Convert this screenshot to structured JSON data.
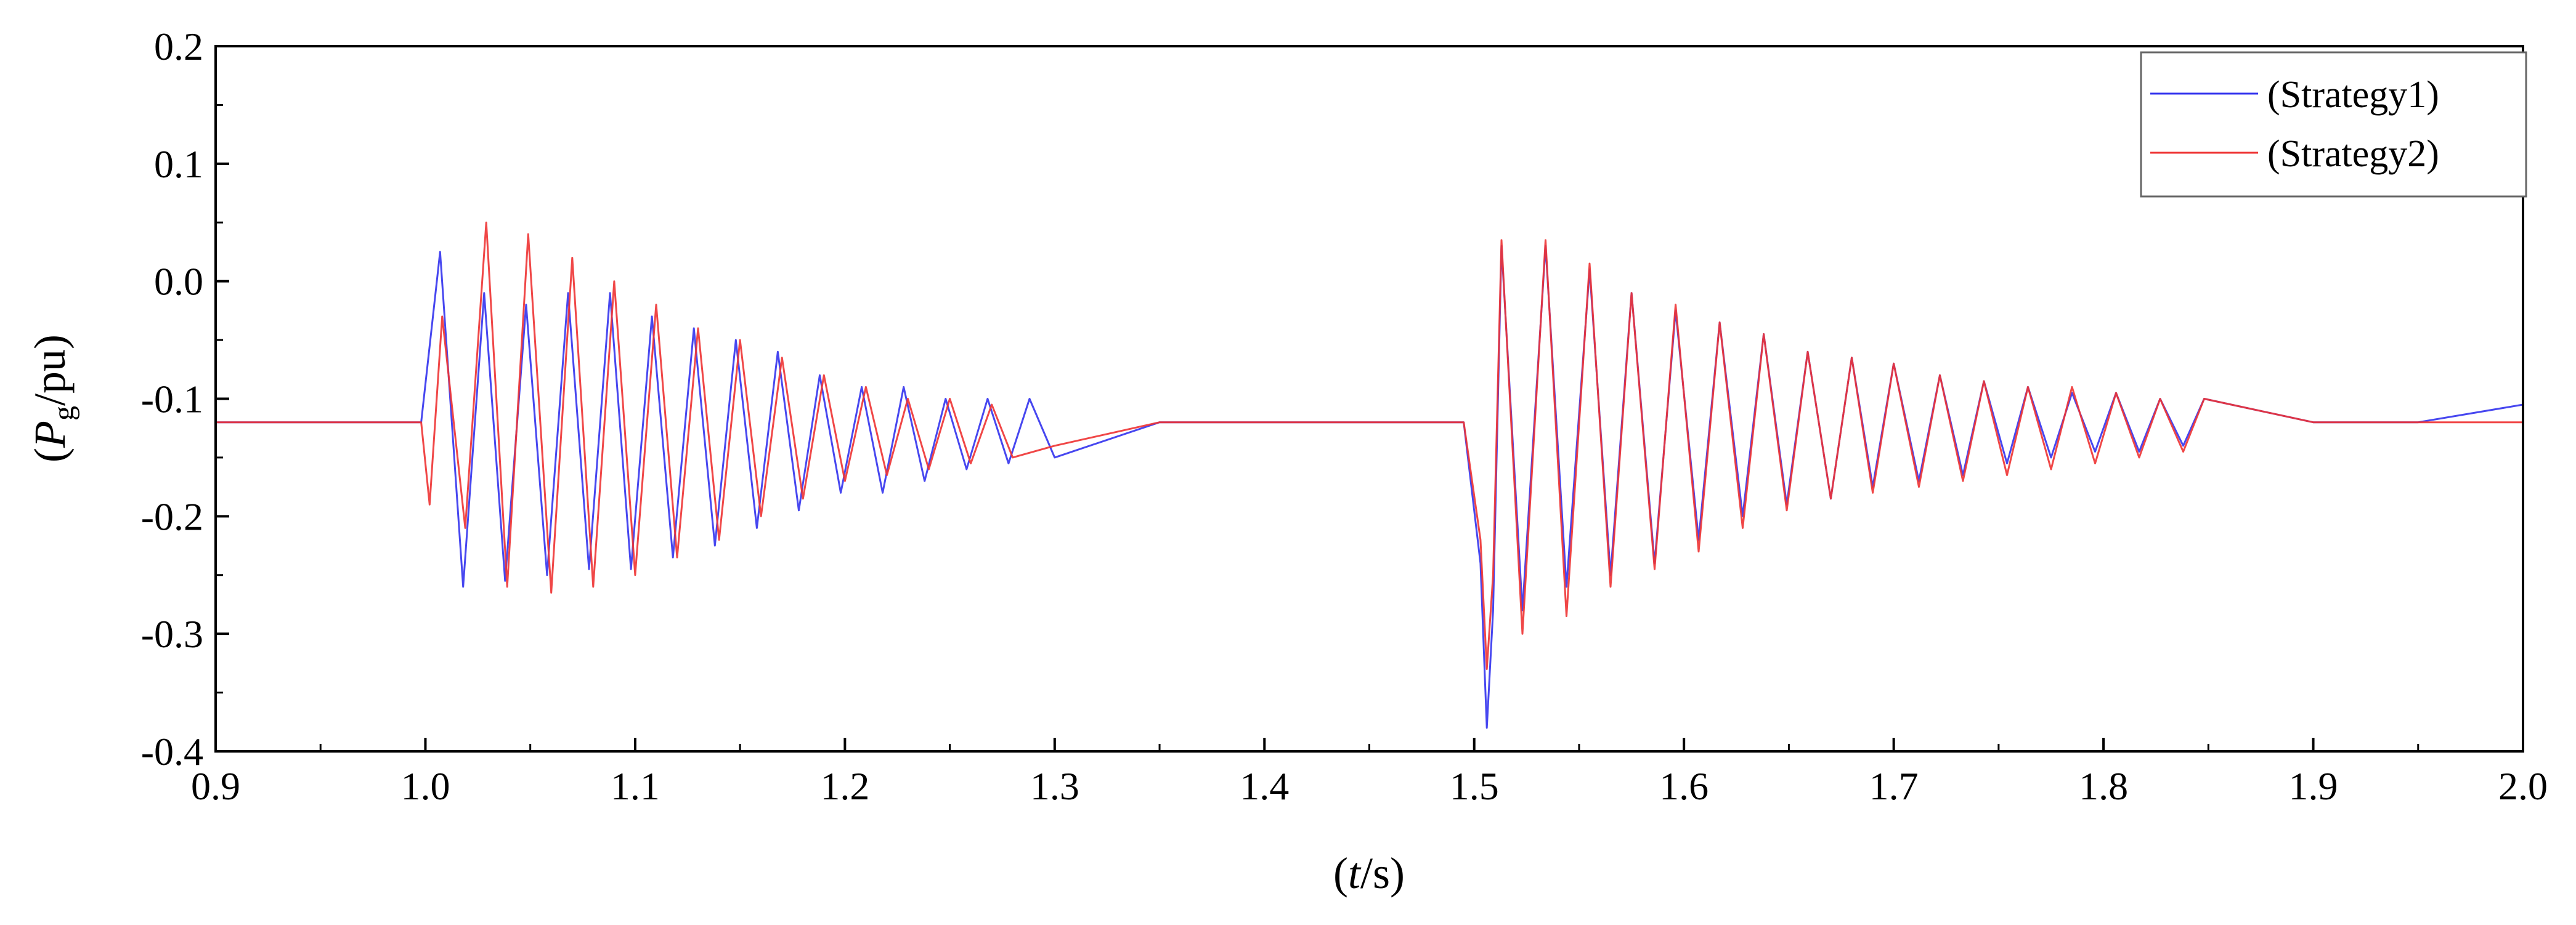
{
  "chart_data": {
    "type": "line",
    "title": "",
    "xlabel": {
      "prefix": "(",
      "italic": "t",
      "suffix": "/s)"
    },
    "ylabel": {
      "prefix": "(",
      "italic": "P",
      "sub": "g",
      "suffix": "/pu)"
    },
    "xlim": [
      0.9,
      2.0
    ],
    "ylim": [
      -0.4,
      0.2
    ],
    "xticks": [
      "0.9",
      "1.0",
      "1.1",
      "1.2",
      "1.3",
      "1.4",
      "1.5",
      "1.6",
      "1.7",
      "1.8",
      "1.9",
      "2.0"
    ],
    "yticks": [
      "0.2",
      "0.1",
      "0.0",
      "-0.1",
      "-0.2",
      "-0.3",
      "-0.4"
    ],
    "grid": false,
    "legend_position": "top-right",
    "series": [
      {
        "name": "(Strategy1)",
        "color": "#3333ee",
        "points": [
          [
            0.9,
            -0.12
          ],
          [
            0.95,
            -0.12
          ],
          [
            0.998,
            -0.12
          ],
          [
            1.007,
            0.025
          ],
          [
            1.018,
            -0.26
          ],
          [
            1.028,
            -0.01
          ],
          [
            1.038,
            -0.255
          ],
          [
            1.048,
            -0.02
          ],
          [
            1.058,
            -0.25
          ],
          [
            1.068,
            -0.01
          ],
          [
            1.078,
            -0.245
          ],
          [
            1.088,
            -0.01
          ],
          [
            1.098,
            -0.245
          ],
          [
            1.108,
            -0.03
          ],
          [
            1.118,
            -0.235
          ],
          [
            1.128,
            -0.04
          ],
          [
            1.138,
            -0.225
          ],
          [
            1.148,
            -0.05
          ],
          [
            1.158,
            -0.21
          ],
          [
            1.168,
            -0.06
          ],
          [
            1.178,
            -0.195
          ],
          [
            1.188,
            -0.08
          ],
          [
            1.198,
            -0.18
          ],
          [
            1.208,
            -0.09
          ],
          [
            1.218,
            -0.18
          ],
          [
            1.228,
            -0.09
          ],
          [
            1.238,
            -0.17
          ],
          [
            1.248,
            -0.1
          ],
          [
            1.258,
            -0.16
          ],
          [
            1.268,
            -0.1
          ],
          [
            1.278,
            -0.155
          ],
          [
            1.288,
            -0.1
          ],
          [
            1.3,
            -0.15
          ],
          [
            1.35,
            -0.12
          ],
          [
            1.4,
            -0.12
          ],
          [
            1.45,
            -0.12
          ],
          [
            1.495,
            -0.12
          ],
          [
            1.503,
            -0.24
          ],
          [
            1.506,
            -0.38
          ],
          [
            1.509,
            -0.28
          ],
          [
            1.513,
            0.03
          ],
          [
            1.523,
            -0.28
          ],
          [
            1.534,
            0.03
          ],
          [
            1.544,
            -0.26
          ],
          [
            1.555,
            0.01
          ],
          [
            1.565,
            -0.25
          ],
          [
            1.575,
            -0.01
          ],
          [
            1.586,
            -0.24
          ],
          [
            1.596,
            -0.025
          ],
          [
            1.607,
            -0.22
          ],
          [
            1.617,
            -0.035
          ],
          [
            1.628,
            -0.2
          ],
          [
            1.638,
            -0.045
          ],
          [
            1.649,
            -0.19
          ],
          [
            1.659,
            -0.06
          ],
          [
            1.67,
            -0.185
          ],
          [
            1.68,
            -0.065
          ],
          [
            1.69,
            -0.175
          ],
          [
            1.7,
            -0.07
          ],
          [
            1.712,
            -0.17
          ],
          [
            1.722,
            -0.08
          ],
          [
            1.733,
            -0.165
          ],
          [
            1.743,
            -0.085
          ],
          [
            1.754,
            -0.155
          ],
          [
            1.764,
            -0.09
          ],
          [
            1.775,
            -0.15
          ],
          [
            1.785,
            -0.095
          ],
          [
            1.796,
            -0.145
          ],
          [
            1.806,
            -0.095
          ],
          [
            1.817,
            -0.145
          ],
          [
            1.827,
            -0.1
          ],
          [
            1.838,
            -0.14
          ],
          [
            1.848,
            -0.1
          ],
          [
            1.9,
            -0.12
          ],
          [
            1.95,
            -0.12
          ],
          [
            2.0,
            -0.105
          ]
        ]
      },
      {
        "name": "(Strategy2)",
        "color": "#ee3333",
        "points": [
          [
            0.9,
            -0.12
          ],
          [
            0.95,
            -0.12
          ],
          [
            0.998,
            -0.12
          ],
          [
            1.002,
            -0.19
          ],
          [
            1.008,
            -0.03
          ],
          [
            1.019,
            -0.21
          ],
          [
            1.029,
            0.05
          ],
          [
            1.039,
            -0.26
          ],
          [
            1.049,
            0.04
          ],
          [
            1.06,
            -0.265
          ],
          [
            1.07,
            0.02
          ],
          [
            1.08,
            -0.26
          ],
          [
            1.09,
            -0.0
          ],
          [
            1.1,
            -0.25
          ],
          [
            1.11,
            -0.02
          ],
          [
            1.12,
            -0.235
          ],
          [
            1.13,
            -0.04
          ],
          [
            1.14,
            -0.22
          ],
          [
            1.15,
            -0.05
          ],
          [
            1.16,
            -0.2
          ],
          [
            1.17,
            -0.065
          ],
          [
            1.18,
            -0.185
          ],
          [
            1.19,
            -0.08
          ],
          [
            1.2,
            -0.17
          ],
          [
            1.21,
            -0.09
          ],
          [
            1.22,
            -0.165
          ],
          [
            1.23,
            -0.1
          ],
          [
            1.24,
            -0.16
          ],
          [
            1.25,
            -0.1
          ],
          [
            1.26,
            -0.155
          ],
          [
            1.27,
            -0.105
          ],
          [
            1.28,
            -0.15
          ],
          [
            1.3,
            -0.14
          ],
          [
            1.35,
            -0.12
          ],
          [
            1.4,
            -0.12
          ],
          [
            1.45,
            -0.12
          ],
          [
            1.495,
            -0.12
          ],
          [
            1.503,
            -0.22
          ],
          [
            1.506,
            -0.33
          ],
          [
            1.509,
            -0.25
          ],
          [
            1.513,
            0.035
          ],
          [
            1.523,
            -0.3
          ],
          [
            1.534,
            0.035
          ],
          [
            1.544,
            -0.285
          ],
          [
            1.555,
            0.015
          ],
          [
            1.565,
            -0.26
          ],
          [
            1.575,
            -0.01
          ],
          [
            1.586,
            -0.245
          ],
          [
            1.596,
            -0.02
          ],
          [
            1.607,
            -0.23
          ],
          [
            1.617,
            -0.035
          ],
          [
            1.628,
            -0.21
          ],
          [
            1.638,
            -0.045
          ],
          [
            1.649,
            -0.195
          ],
          [
            1.659,
            -0.06
          ],
          [
            1.67,
            -0.185
          ],
          [
            1.68,
            -0.065
          ],
          [
            1.69,
            -0.18
          ],
          [
            1.7,
            -0.07
          ],
          [
            1.712,
            -0.175
          ],
          [
            1.722,
            -0.08
          ],
          [
            1.733,
            -0.17
          ],
          [
            1.743,
            -0.085
          ],
          [
            1.754,
            -0.165
          ],
          [
            1.764,
            -0.09
          ],
          [
            1.775,
            -0.16
          ],
          [
            1.785,
            -0.09
          ],
          [
            1.796,
            -0.155
          ],
          [
            1.806,
            -0.095
          ],
          [
            1.817,
            -0.15
          ],
          [
            1.827,
            -0.1
          ],
          [
            1.838,
            -0.145
          ],
          [
            1.848,
            -0.1
          ],
          [
            1.9,
            -0.12
          ],
          [
            1.95,
            -0.12
          ],
          [
            2.0,
            -0.12
          ]
        ]
      }
    ]
  }
}
